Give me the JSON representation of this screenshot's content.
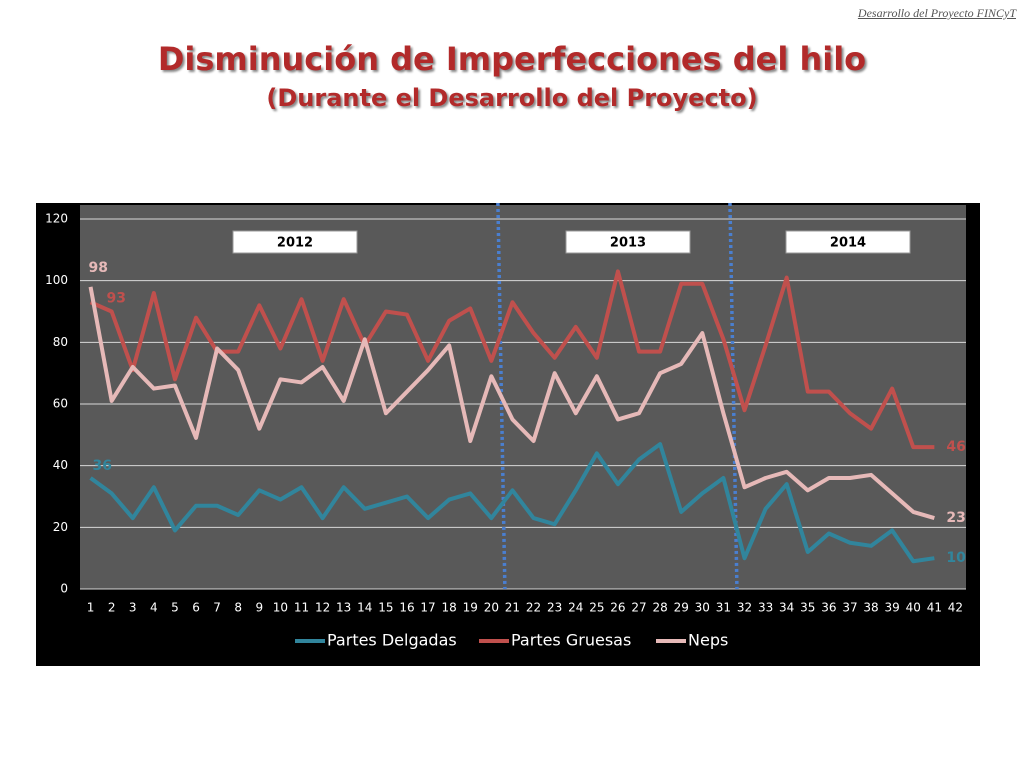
{
  "header": "Desarrollo del Proyecto FINCyT",
  "chart_data": {
    "type": "line",
    "title": "Disminución de Imperfecciones del hilo",
    "subtitle": "(Durante el Desarrollo del Proyecto)",
    "categories": [
      1,
      2,
      3,
      4,
      5,
      6,
      7,
      8,
      9,
      10,
      11,
      12,
      13,
      14,
      15,
      16,
      17,
      18,
      19,
      20,
      21,
      22,
      23,
      24,
      25,
      26,
      27,
      28,
      29,
      30,
      31,
      32,
      33,
      34,
      35,
      36,
      37,
      38,
      39,
      40,
      41,
      42
    ],
    "series": [
      {
        "name": "Partes Delgadas",
        "color": "#31859c",
        "labeled_indices": [
          0,
          40
        ],
        "values": [
          36,
          31,
          23,
          33,
          19,
          27,
          27,
          24,
          32,
          29,
          33,
          23,
          33,
          26,
          28,
          30,
          23,
          29,
          31,
          23,
          32,
          23,
          21,
          32,
          44,
          34,
          42,
          47,
          25,
          31,
          36,
          10,
          26,
          34,
          12,
          18,
          15,
          14,
          19,
          9,
          10,
          null
        ]
      },
      {
        "name": "Partes Gruesas",
        "color": "#c0504d",
        "labeled_indices": [
          0,
          40
        ],
        "values": [
          93,
          90,
          71,
          96,
          68,
          88,
          77,
          77,
          92,
          78,
          94,
          74,
          94,
          79,
          90,
          89,
          74,
          87,
          91,
          74,
          93,
          83,
          75,
          85,
          75,
          103,
          77,
          77,
          99,
          99,
          81,
          58,
          79,
          101,
          64,
          64,
          57,
          52,
          65,
          46,
          46,
          null
        ]
      },
      {
        "name": "Neps",
        "color": "#e6b9b8",
        "labeled_indices": [
          0,
          40
        ],
        "values": [
          98,
          61,
          72,
          65,
          66,
          49,
          78,
          71,
          52,
          68,
          67,
          72,
          61,
          81,
          57,
          64,
          71,
          79,
          48,
          69,
          55,
          48,
          70,
          57,
          69,
          55,
          57,
          70,
          73,
          83,
          57,
          33,
          36,
          38,
          32,
          36,
          36,
          37,
          31,
          25,
          23,
          null
        ]
      }
    ],
    "ylim": [
      0,
      120
    ],
    "yticks": [
      0,
      20,
      40,
      60,
      80,
      100,
      120
    ],
    "grid": true,
    "dividers": [
      21,
      32
    ],
    "divider_color": "#4a7fd0",
    "annotations": [
      "2012",
      "2013",
      "2014"
    ],
    "legend": "bottom"
  }
}
